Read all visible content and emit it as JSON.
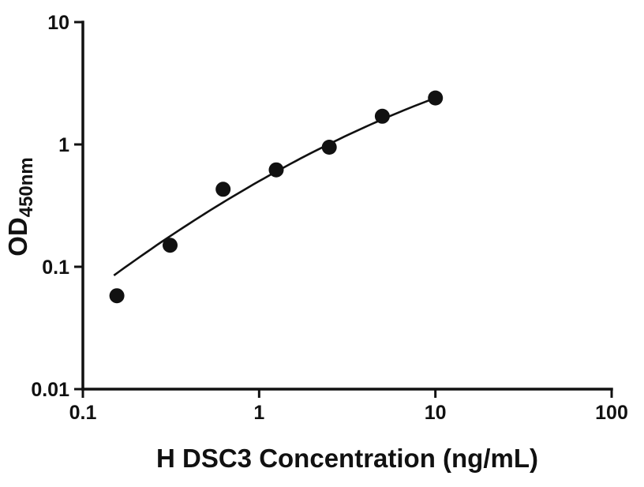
{
  "chart_data": {
    "type": "scatter",
    "title": "",
    "xlabel": "H DSC3 Concentration (ng/mL)",
    "ylabel": "OD",
    "ylabel_subscript": "450nm",
    "x_scale": "log",
    "y_scale": "log",
    "xlim": [
      0.1,
      100
    ],
    "ylim": [
      0.01,
      10
    ],
    "x_ticks": [
      0.1,
      1,
      10,
      100
    ],
    "x_tick_labels": [
      "0.1",
      "1",
      "10",
      "100"
    ],
    "y_ticks": [
      0.01,
      0.1,
      1,
      10
    ],
    "y_tick_labels": [
      "0.01",
      "0.1",
      "1",
      "10"
    ],
    "points": {
      "x": [
        0.156,
        0.3125,
        0.625,
        1.25,
        2.5,
        5,
        10
      ],
      "y": [
        0.058,
        0.15,
        0.43,
        0.62,
        0.95,
        1.7,
        2.4
      ]
    },
    "trendline": {
      "type": "log-quadratic",
      "description": "smooth fitted standard curve through points (log-log space)",
      "coeffs_log10": [
        -0.3,
        0.82,
        -0.14
      ],
      "x_range": [
        0.15,
        10
      ]
    },
    "marker_color": "#111111",
    "line_color": "#111111",
    "axis_color": "#111111",
    "background": "#ffffff",
    "grid": false,
    "legend": false
  }
}
